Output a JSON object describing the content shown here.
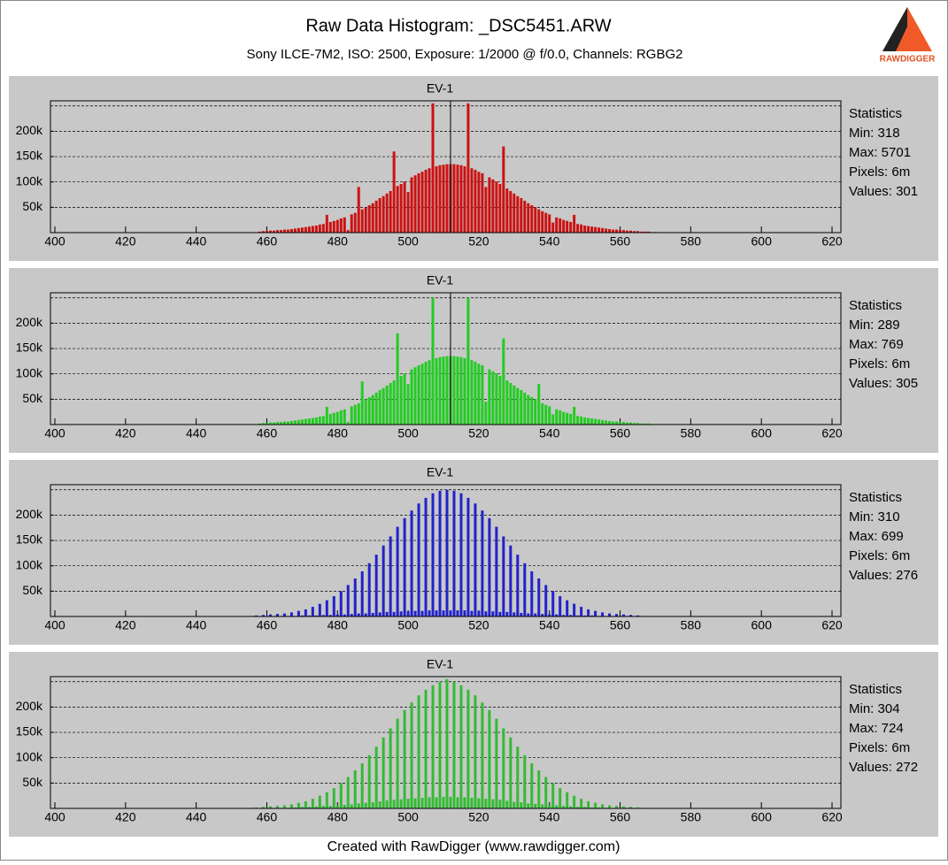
{
  "header": {
    "title": "Raw Data Histogram: _DSC5451.ARW",
    "subtitle": "Sony ILCE-7M2, ISO: 2500, Exposure: 1/2000 @ f/0.0, Channels: RGBG2",
    "logo": "RAWDIGGER"
  },
  "footer": "Created with RawDigger (www.rawdigger.com)",
  "chart_data": [
    {
      "type": "bar",
      "annotation": "EV-1",
      "color": "#cc1111",
      "marker": 512,
      "xlim": [
        400,
        620
      ],
      "xticks": [
        400,
        420,
        440,
        460,
        480,
        500,
        520,
        540,
        560,
        580,
        600,
        620
      ],
      "ylim": [
        0,
        260000
      ],
      "yticks": [
        {
          "value": 50000,
          "label": "50k"
        },
        {
          "value": 100000,
          "label": "100k"
        },
        {
          "value": 150000,
          "label": "150k"
        },
        {
          "value": 200000,
          "label": "200k"
        }
      ],
      "grid_lines": [
        50000,
        100000,
        150000,
        200000,
        250000
      ],
      "stats": [
        "Statistics",
        "Min: 318",
        "Max: 5701",
        "Pixels: 6m",
        "Values: 301"
      ],
      "x": [
        458,
        459,
        460,
        461,
        462,
        463,
        464,
        465,
        466,
        467,
        468,
        469,
        470,
        471,
        472,
        473,
        474,
        475,
        476,
        477,
        478,
        479,
        480,
        481,
        482,
        483,
        484,
        485,
        486,
        487,
        488,
        489,
        490,
        491,
        492,
        493,
        494,
        495,
        496,
        497,
        498,
        499,
        500,
        501,
        502,
        503,
        504,
        505,
        506,
        507,
        508,
        509,
        510,
        511,
        512,
        513,
        514,
        515,
        516,
        517,
        518,
        519,
        520,
        521,
        522,
        523,
        524,
        525,
        526,
        527,
        528,
        529,
        530,
        531,
        532,
        533,
        534,
        535,
        536,
        537,
        538,
        539,
        540,
        541,
        542,
        543,
        544,
        545,
        546,
        547,
        548,
        549,
        550,
        551,
        552,
        553,
        554,
        555,
        556,
        557,
        558,
        559,
        560,
        561,
        562,
        563,
        564,
        565,
        566,
        567,
        568,
        569,
        570
      ],
      "values": [
        2000,
        3000,
        3000,
        4000,
        4000,
        5000,
        5000,
        6000,
        6000,
        7000,
        8000,
        9000,
        10000,
        11000,
        12000,
        13000,
        14000,
        16000,
        17000,
        35000,
        21000,
        23000,
        25000,
        28000,
        30000,
        5000,
        36000,
        39000,
        90000,
        46000,
        50000,
        54000,
        58000,
        63000,
        68000,
        72000,
        77000,
        82000,
        160000,
        92000,
        96000,
        101000,
        80000,
        109000,
        113000,
        117000,
        120000,
        124000,
        127000,
        255000,
        131000,
        133000,
        134000,
        135000,
        135000,
        135000,
        134000,
        133000,
        131000,
        255000,
        127000,
        124000,
        120000,
        117000,
        90000,
        109000,
        105000,
        101000,
        96000,
        170000,
        87000,
        82000,
        77000,
        72000,
        68000,
        63000,
        58000,
        54000,
        50000,
        46000,
        42000,
        39000,
        36000,
        20000,
        30000,
        28000,
        25000,
        23000,
        21000,
        35000,
        17000,
        16000,
        14000,
        13000,
        12000,
        11000,
        10000,
        9000,
        8000,
        7000,
        6000,
        6000,
        5000,
        5000,
        4000,
        4000,
        3000,
        3000,
        2000,
        2000,
        2000,
        1000,
        1000
      ]
    },
    {
      "type": "bar",
      "annotation": "EV-1",
      "color": "#22cc22",
      "marker": 512,
      "xlim": [
        400,
        620
      ],
      "xticks": [
        400,
        420,
        440,
        460,
        480,
        500,
        520,
        540,
        560,
        580,
        600,
        620
      ],
      "ylim": [
        0,
        260000
      ],
      "yticks": [
        {
          "value": 50000,
          "label": "50k"
        },
        {
          "value": 100000,
          "label": "100k"
        },
        {
          "value": 150000,
          "label": "150k"
        },
        {
          "value": 200000,
          "label": "200k"
        }
      ],
      "grid_lines": [
        50000,
        100000,
        150000,
        200000,
        250000
      ],
      "stats": [
        "Statistics",
        "Min: 289",
        "Max: 769",
        "Pixels: 6m",
        "Values: 305"
      ],
      "x": [
        458,
        459,
        460,
        461,
        462,
        463,
        464,
        465,
        466,
        467,
        468,
        469,
        470,
        471,
        472,
        473,
        474,
        475,
        476,
        477,
        478,
        479,
        480,
        481,
        482,
        483,
        484,
        485,
        486,
        487,
        488,
        489,
        490,
        491,
        492,
        493,
        494,
        495,
        496,
        497,
        498,
        499,
        500,
        501,
        502,
        503,
        504,
        505,
        506,
        507,
        508,
        509,
        510,
        511,
        512,
        513,
        514,
        515,
        516,
        517,
        518,
        519,
        520,
        521,
        522,
        523,
        524,
        525,
        526,
        527,
        528,
        529,
        530,
        531,
        532,
        533,
        534,
        535,
        536,
        537,
        538,
        539,
        540,
        541,
        542,
        543,
        544,
        545,
        546,
        547,
        548,
        549,
        550,
        551,
        552,
        553,
        554,
        555,
        556,
        557,
        558,
        559,
        560,
        561,
        562,
        563,
        564,
        565,
        566,
        567,
        568,
        569,
        570
      ],
      "values": [
        2000,
        3000,
        3000,
        4000,
        4000,
        5000,
        5000,
        6000,
        6000,
        7000,
        8000,
        9000,
        10000,
        11000,
        12000,
        13000,
        14000,
        16000,
        17000,
        35000,
        21000,
        23000,
        25000,
        28000,
        30000,
        5000,
        36000,
        39000,
        42000,
        85000,
        50000,
        54000,
        58000,
        63000,
        68000,
        72000,
        77000,
        82000,
        87000,
        180000,
        96000,
        101000,
        80000,
        109000,
        113000,
        117000,
        120000,
        124000,
        127000,
        250000,
        131000,
        133000,
        134000,
        135000,
        135000,
        135000,
        134000,
        133000,
        131000,
        250000,
        127000,
        124000,
        120000,
        117000,
        45000,
        109000,
        105000,
        101000,
        96000,
        170000,
        87000,
        82000,
        77000,
        72000,
        68000,
        63000,
        58000,
        54000,
        50000,
        80000,
        42000,
        39000,
        36000,
        20000,
        30000,
        28000,
        25000,
        23000,
        21000,
        35000,
        17000,
        16000,
        14000,
        13000,
        12000,
        11000,
        10000,
        9000,
        8000,
        7000,
        6000,
        6000,
        5000,
        5000,
        4000,
        4000,
        3000,
        3000,
        2000,
        2000,
        2000,
        1000,
        1000
      ]
    },
    {
      "type": "bar",
      "annotation": "EV-1",
      "color": "#2222cc",
      "xlim": [
        400,
        620
      ],
      "xticks": [
        400,
        420,
        440,
        460,
        480,
        500,
        520,
        540,
        560,
        580,
        600,
        620
      ],
      "ylim": [
        0,
        260000
      ],
      "yticks": [
        {
          "value": 50000,
          "label": "50k"
        },
        {
          "value": 100000,
          "label": "100k"
        },
        {
          "value": 150000,
          "label": "150k"
        },
        {
          "value": 200000,
          "label": "200k"
        }
      ],
      "grid_lines": [
        50000,
        100000,
        150000,
        200000,
        250000
      ],
      "stats": [
        "Statistics",
        "Min: 310",
        "Max: 699",
        "Pixels: 6m",
        "Values: 276"
      ],
      "x": [
        456,
        457,
        458,
        459,
        460,
        461,
        462,
        463,
        464,
        465,
        466,
        467,
        468,
        469,
        470,
        471,
        472,
        473,
        474,
        475,
        476,
        477,
        478,
        479,
        480,
        481,
        482,
        483,
        484,
        485,
        486,
        487,
        488,
        489,
        490,
        491,
        492,
        493,
        494,
        495,
        496,
        497,
        498,
        499,
        500,
        501,
        502,
        503,
        504,
        505,
        506,
        507,
        508,
        509,
        510,
        511,
        512,
        513,
        514,
        515,
        516,
        517,
        518,
        519,
        520,
        521,
        522,
        523,
        524,
        525,
        526,
        527,
        528,
        529,
        530,
        531,
        532,
        533,
        534,
        535,
        536,
        537,
        538,
        539,
        540,
        541,
        542,
        543,
        544,
        545,
        546,
        547,
        548,
        549,
        550,
        551,
        552,
        553,
        554,
        555,
        556,
        557,
        558,
        559,
        560,
        561,
        562,
        563,
        564,
        565,
        566
      ],
      "values": [
        1000,
        2000,
        1000,
        3000,
        1000,
        4000,
        1000,
        5000,
        1000,
        6000,
        1000,
        8000,
        1000,
        11000,
        2000,
        14000,
        2000,
        19000,
        2000,
        25000,
        3000,
        32000,
        3000,
        40000,
        4000,
        50000,
        4000,
        62000,
        5000,
        75000,
        6000,
        89000,
        6000,
        105000,
        7000,
        122000,
        8000,
        140000,
        9000,
        158000,
        9000,
        177000,
        10000,
        194000,
        10000,
        209000,
        11000,
        223000,
        11000,
        234000,
        12000,
        243000,
        12000,
        248000,
        12000,
        250000,
        12000,
        248000,
        12000,
        243000,
        12000,
        234000,
        11000,
        223000,
        11000,
        209000,
        10000,
        194000,
        10000,
        177000,
        9000,
        158000,
        9000,
        140000,
        8000,
        122000,
        7000,
        105000,
        6000,
        89000,
        6000,
        75000,
        5000,
        62000,
        4000,
        50000,
        4000,
        40000,
        3000,
        32000,
        3000,
        25000,
        2000,
        19000,
        2000,
        14000,
        2000,
        11000,
        1000,
        8000,
        1000,
        6000,
        1000,
        5000,
        1000,
        4000,
        1000,
        3000,
        1000,
        2000,
        1000
      ]
    },
    {
      "type": "bar",
      "annotation": "EV-1",
      "color": "#33bb33",
      "xlim": [
        400,
        620
      ],
      "xticks": [
        400,
        420,
        440,
        460,
        480,
        500,
        520,
        540,
        560,
        580,
        600,
        620
      ],
      "ylim": [
        0,
        260000
      ],
      "yticks": [
        {
          "value": 50000,
          "label": "50k"
        },
        {
          "value": 100000,
          "label": "100k"
        },
        {
          "value": 150000,
          "label": "150k"
        },
        {
          "value": 200000,
          "label": "200k"
        }
      ],
      "grid_lines": [
        50000,
        100000,
        150000,
        200000,
        250000
      ],
      "stats": [
        "Statistics",
        "Min: 304",
        "Max: 724",
        "Pixels: 6m",
        "Values: 272"
      ],
      "x": [
        456,
        457,
        458,
        459,
        460,
        461,
        462,
        463,
        464,
        465,
        466,
        467,
        468,
        469,
        470,
        471,
        472,
        473,
        474,
        475,
        476,
        477,
        478,
        479,
        480,
        481,
        482,
        483,
        484,
        485,
        486,
        487,
        488,
        489,
        490,
        491,
        492,
        493,
        494,
        495,
        496,
        497,
        498,
        499,
        500,
        501,
        502,
        503,
        504,
        505,
        506,
        507,
        508,
        509,
        510,
        511,
        512,
        513,
        514,
        515,
        516,
        517,
        518,
        519,
        520,
        521,
        522,
        523,
        524,
        525,
        526,
        527,
        528,
        529,
        530,
        531,
        532,
        533,
        534,
        535,
        536,
        537,
        538,
        539,
        540,
        541,
        542,
        543,
        544,
        545,
        546,
        547,
        548,
        549,
        550,
        551,
        552,
        553,
        554,
        555,
        556,
        557,
        558,
        559,
        560,
        561,
        562,
        563,
        564,
        565,
        566
      ],
      "values": [
        1000,
        2000,
        1000,
        3000,
        1000,
        4000,
        1000,
        5000,
        1000,
        6000,
        1000,
        8000,
        2000,
        11000,
        3000,
        14000,
        3000,
        19000,
        4000,
        25000,
        5000,
        32000,
        5000,
        40000,
        6000,
        50000,
        7000,
        62000,
        8000,
        75000,
        10000,
        89000,
        11000,
        105000,
        12000,
        122000,
        14000,
        140000,
        16000,
        158000,
        17000,
        177000,
        18000,
        194000,
        19000,
        209000,
        20000,
        223000,
        21000,
        234000,
        22000,
        243000,
        22000,
        250000,
        23000,
        255000,
        23000,
        250000,
        22000,
        243000,
        22000,
        234000,
        21000,
        223000,
        20000,
        209000,
        19000,
        194000,
        18000,
        177000,
        17000,
        158000,
        15000,
        140000,
        13000,
        122000,
        12000,
        105000,
        10000,
        89000,
        9000,
        75000,
        8000,
        62000,
        7000,
        50000,
        6000,
        40000,
        5000,
        32000,
        4000,
        25000,
        3000,
        19000,
        3000,
        14000,
        2000,
        11000,
        2000,
        8000,
        1000,
        6000,
        1000,
        5000,
        1000,
        4000,
        1000,
        3000,
        1000,
        2000,
        1000
      ]
    }
  ]
}
